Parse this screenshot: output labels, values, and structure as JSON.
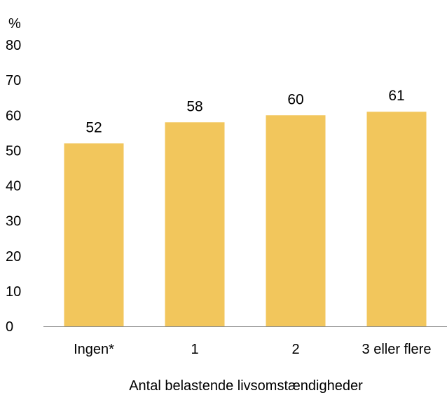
{
  "chart_data": {
    "type": "bar",
    "y_unit": "%",
    "xlabel": "Antal belastende livsomstændigheder",
    "categories": [
      "Ingen*",
      "1",
      "2",
      "3 eller flere"
    ],
    "values": [
      52,
      58,
      60,
      61
    ],
    "data_labels": [
      "52",
      "58",
      "60",
      "61"
    ],
    "y_ticks": [
      "0",
      "10",
      "20",
      "30",
      "40",
      "50",
      "60",
      "70",
      "80"
    ],
    "ylim": [
      0,
      80
    ],
    "grid": false,
    "legend": "none",
    "colors": {
      "bar": "#F2C65C",
      "axis": "#8c8c8c",
      "text": "#000000"
    }
  }
}
